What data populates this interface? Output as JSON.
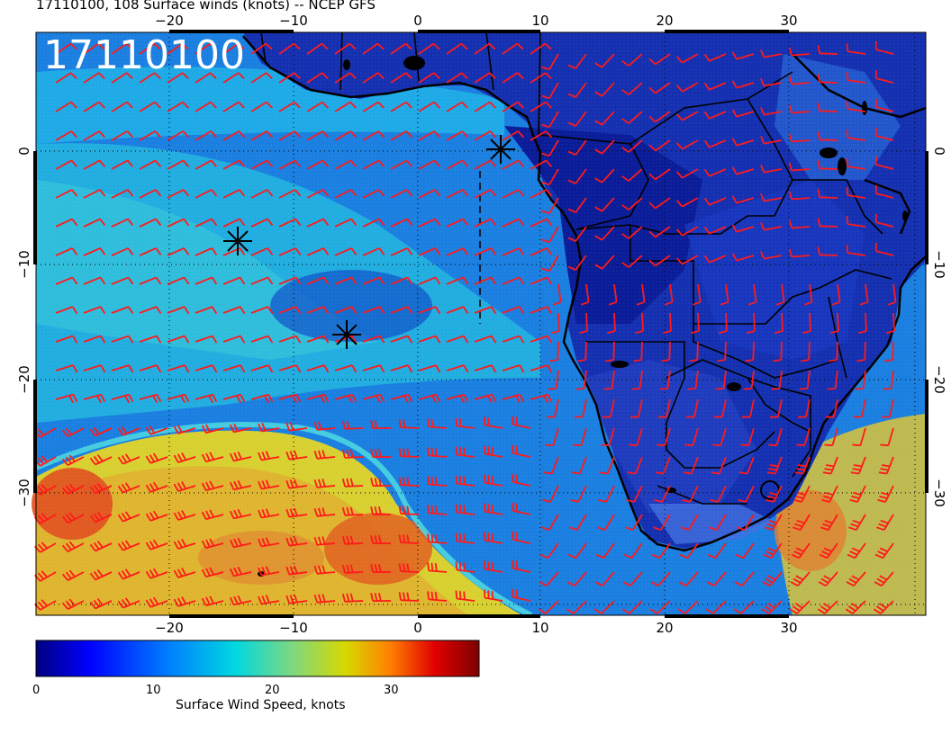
{
  "header": {
    "title": "17110100, 108 Surface winds (knots) -- NCEP GFS",
    "stamp": "17110100"
  },
  "axes": {
    "lon_ticks": [
      "−20",
      "−10",
      "0",
      "10",
      "20",
      "30"
    ],
    "lat_ticks": [
      "0",
      "−10",
      "−20",
      "−30"
    ]
  },
  "colorbar": {
    "title": "Surface Wind Speed, knots",
    "ticks": [
      "0",
      "10",
      "20",
      "30"
    ],
    "colors": [
      "#00007f",
      "#0000ff",
      "#007fff",
      "#00d8e0",
      "#7fd87f",
      "#d8d800",
      "#ff7f00",
      "#e00000",
      "#7f0000"
    ]
  },
  "markers": {
    "asterisks": 3,
    "colors": {
      "barb": "#ff1a1a",
      "coast": "#000000",
      "marker": "#000000"
    }
  }
}
